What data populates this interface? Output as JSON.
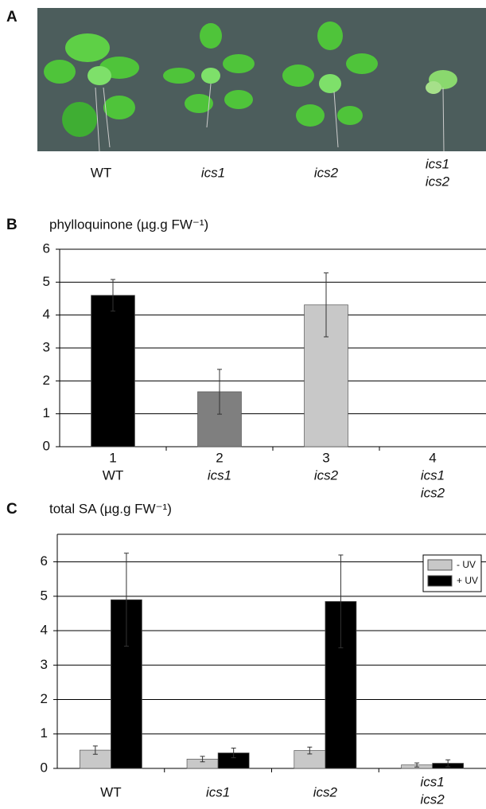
{
  "panel_a": {
    "label": "A",
    "labels": [
      [
        "WT"
      ],
      [
        "ics1"
      ],
      [
        "ics2"
      ],
      [
        "ics1",
        "ics2"
      ]
    ],
    "italic": [
      false,
      true,
      true,
      true
    ]
  },
  "chart_data": [
    {
      "type": "bar",
      "panel_label": "B",
      "title": "phylloquinone (µg.g FW⁻¹)",
      "categories": [
        "1",
        "2",
        "3",
        "4"
      ],
      "category_names": [
        [
          "WT"
        ],
        [
          "ics1"
        ],
        [
          "ics2"
        ],
        [
          "ics1",
          "ics2"
        ]
      ],
      "italic": [
        false,
        true,
        true,
        true
      ],
      "values": [
        4.6,
        1.67,
        4.31,
        null
      ],
      "errors": [
        0.48,
        0.68,
        0.97,
        null
      ],
      "colors": [
        "#000000",
        "#7f7f7f",
        "#c8c8c8",
        "#c8c8c8"
      ],
      "ylim": [
        0,
        6
      ],
      "yticks": [
        0,
        1,
        2,
        3,
        4,
        5,
        6
      ],
      "grid": true
    },
    {
      "type": "bar",
      "panel_label": "C",
      "title": "total SA (µg.g FW⁻¹)",
      "categories": [
        [
          "WT"
        ],
        [
          "ics1"
        ],
        [
          "ics2"
        ],
        [
          "ics1",
          "ics2"
        ]
      ],
      "italic": [
        false,
        true,
        true,
        true
      ],
      "series": [
        {
          "name": "- UV",
          "color": "#c8c8c8",
          "values": [
            0.53,
            0.27,
            0.52,
            0.1
          ],
          "errors": [
            0.12,
            0.08,
            0.1,
            0.06
          ]
        },
        {
          "name": "+ UV",
          "color": "#000000",
          "values": [
            4.9,
            0.45,
            4.85,
            0.15
          ],
          "errors": [
            1.35,
            0.14,
            1.35,
            0.1
          ]
        }
      ],
      "ylim": [
        0,
        6.8
      ],
      "yticks": [
        0,
        1,
        2,
        3,
        4,
        5,
        6
      ],
      "grid": true,
      "legend": "top-right"
    }
  ]
}
